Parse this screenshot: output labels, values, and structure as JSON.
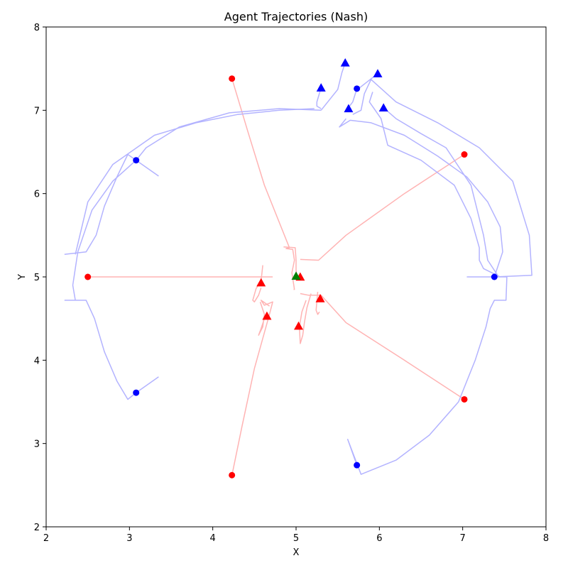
{
  "chart_data": {
    "type": "scatter",
    "title": "Agent Trajectories (Nash)",
    "xlabel": "X",
    "ylabel": "Y",
    "xlim": [
      2,
      8
    ],
    "ylim": [
      2,
      8
    ],
    "xticks": [
      2,
      3,
      4,
      5,
      6,
      7,
      8
    ],
    "yticks": [
      2,
      3,
      4,
      5,
      6,
      7,
      8
    ],
    "grid": false,
    "colors": {
      "red_trajectory": "#ffb3b3",
      "blue_trajectory": "#b3b3ff",
      "red_marker": "#ff0000",
      "blue_marker": "#0000ff",
      "target_marker": "#008000"
    },
    "red_trajectories": [
      [
        [
          4.23,
          7.38
        ],
        [
          4.42,
          6.75
        ],
        [
          4.62,
          6.1
        ],
        [
          4.82,
          5.6
        ],
        [
          4.92,
          5.35
        ],
        [
          4.88,
          5.34
        ],
        [
          4.96,
          5.33
        ],
        [
          4.98,
          5.2
        ],
        [
          4.95,
          5.05
        ],
        [
          4.98,
          4.85
        ],
        [
          4.97,
          4.85
        ]
      ],
      [
        [
          4.85,
          5.36
        ],
        [
          4.99,
          5.35
        ],
        [
          5.0,
          5.2
        ],
        [
          5.0,
          5.08
        ],
        [
          5.01,
          5.0
        ]
      ],
      [
        [
          2.5,
          5.0
        ],
        [
          3.5,
          5.0
        ],
        [
          4.3,
          5.0
        ],
        [
          4.72,
          5.0
        ]
      ],
      [
        [
          4.6,
          5.14
        ],
        [
          4.58,
          4.95
        ],
        [
          4.52,
          4.86
        ],
        [
          4.48,
          4.72
        ],
        [
          4.5,
          4.7
        ],
        [
          4.55,
          4.78
        ],
        [
          4.58,
          4.87
        ]
      ],
      [
        [
          7.02,
          6.47
        ],
        [
          6.3,
          6.0
        ],
        [
          5.6,
          5.5
        ],
        [
          5.27,
          5.2
        ],
        [
          5.05,
          5.21
        ]
      ],
      [
        [
          7.02,
          3.53
        ],
        [
          6.3,
          4.0
        ],
        [
          5.6,
          4.45
        ],
        [
          5.3,
          4.78
        ],
        [
          5.15,
          4.78
        ],
        [
          5.05,
          4.8
        ]
      ],
      [
        [
          5.18,
          4.8
        ],
        [
          5.13,
          4.63
        ],
        [
          5.1,
          4.45
        ],
        [
          5.08,
          4.3
        ],
        [
          5.05,
          4.2
        ],
        [
          5.04,
          4.4
        ],
        [
          5.07,
          4.58
        ],
        [
          5.12,
          4.72
        ]
      ],
      [
        [
          5.26,
          4.82
        ],
        [
          5.24,
          4.6
        ],
        [
          5.26,
          4.55
        ],
        [
          5.28,
          4.58
        ]
      ],
      [
        [
          4.23,
          2.62
        ],
        [
          4.35,
          3.2
        ],
        [
          4.5,
          3.9
        ],
        [
          4.68,
          4.55
        ],
        [
          4.72,
          4.7
        ],
        [
          4.62,
          4.66
        ],
        [
          4.58,
          4.72
        ],
        [
          4.68,
          4.65
        ]
      ],
      [
        [
          4.57,
          4.7
        ],
        [
          4.62,
          4.55
        ],
        [
          4.6,
          4.4
        ],
        [
          4.55,
          4.3
        ],
        [
          4.58,
          4.38
        ],
        [
          4.62,
          4.5
        ]
      ]
    ],
    "blue_trajectories": [
      [
        [
          3.35,
          6.21
        ],
        [
          3.08,
          6.4
        ],
        [
          2.98,
          6.47
        ],
        [
          2.85,
          6.2
        ],
        [
          2.7,
          5.85
        ],
        [
          2.6,
          5.5
        ],
        [
          2.48,
          5.3
        ],
        [
          2.22,
          5.27
        ]
      ],
      [
        [
          3.35,
          3.8
        ],
        [
          3.08,
          3.61
        ],
        [
          2.98,
          3.53
        ],
        [
          2.85,
          3.75
        ],
        [
          2.7,
          4.1
        ],
        [
          2.58,
          4.5
        ],
        [
          2.48,
          4.72
        ],
        [
          2.22,
          4.72
        ]
      ],
      [
        [
          5.73,
          2.74
        ],
        [
          5.62,
          3.05
        ],
        [
          5.78,
          2.63
        ],
        [
          6.2,
          2.8
        ],
        [
          6.6,
          3.1
        ],
        [
          6.95,
          3.5
        ],
        [
          7.15,
          4.0
        ],
        [
          7.28,
          4.4
        ],
        [
          7.33,
          4.62
        ],
        [
          7.38,
          4.72
        ],
        [
          7.52,
          4.72
        ],
        [
          7.53,
          5.0
        ],
        [
          7.05,
          5.0
        ]
      ],
      [
        [
          7.38,
          5.0
        ],
        [
          7.83,
          5.02
        ],
        [
          7.8,
          5.5
        ],
        [
          7.6,
          6.15
        ],
        [
          7.2,
          6.55
        ],
        [
          6.7,
          6.85
        ],
        [
          6.2,
          7.1
        ],
        [
          5.9,
          7.37
        ],
        [
          5.82,
          7.2
        ],
        [
          5.78,
          7.0
        ],
        [
          5.68,
          6.95
        ]
      ],
      [
        [
          7.38,
          5.0
        ],
        [
          7.48,
          5.3
        ],
        [
          7.45,
          5.6
        ],
        [
          7.3,
          5.9
        ],
        [
          7.05,
          6.2
        ],
        [
          6.7,
          6.45
        ],
        [
          6.3,
          6.7
        ],
        [
          5.9,
          6.85
        ],
        [
          5.65,
          6.88
        ],
        [
          5.52,
          6.8
        ],
        [
          5.6,
          6.9
        ]
      ],
      [
        [
          7.45,
          5.0
        ],
        [
          7.25,
          5.1
        ],
        [
          7.2,
          5.2
        ],
        [
          7.2,
          5.35
        ],
        [
          7.1,
          5.7
        ],
        [
          6.9,
          6.1
        ],
        [
          6.5,
          6.4
        ],
        [
          6.1,
          6.58
        ],
        [
          6.02,
          6.9
        ],
        [
          5.88,
          7.1
        ],
        [
          5.92,
          7.22
        ]
      ],
      [
        [
          5.73,
          7.26
        ],
        [
          5.68,
          7.1
        ],
        [
          5.62,
          7.02
        ]
      ],
      [
        [
          6.05,
          7.03
        ],
        [
          6.2,
          6.9
        ],
        [
          6.5,
          6.72
        ],
        [
          6.8,
          6.55
        ],
        [
          7.1,
          6.1
        ],
        [
          7.25,
          5.5
        ],
        [
          7.3,
          5.2
        ],
        [
          7.42,
          5.02
        ]
      ],
      [
        [
          3.08,
          6.4
        ],
        [
          2.8,
          6.15
        ],
        [
          2.55,
          5.8
        ],
        [
          2.38,
          5.3
        ],
        [
          2.32,
          4.9
        ],
        [
          2.35,
          4.72
        ]
      ],
      [
        [
          3.08,
          6.4
        ],
        [
          3.2,
          6.55
        ],
        [
          3.6,
          6.8
        ],
        [
          4.2,
          6.97
        ],
        [
          4.8,
          7.02
        ],
        [
          5.3,
          7.0
        ]
      ],
      [
        [
          2.35,
          5.27
        ],
        [
          2.5,
          5.9
        ],
        [
          2.8,
          6.35
        ],
        [
          3.3,
          6.7
        ],
        [
          3.8,
          6.85
        ],
        [
          4.3,
          6.95
        ],
        [
          4.8,
          7.0
        ],
        [
          5.22,
          7.02
        ]
      ],
      [
        [
          5.3,
          7.02
        ],
        [
          5.25,
          7.05
        ],
        [
          5.25,
          7.1
        ],
        [
          5.3,
          7.27
        ]
      ],
      [
        [
          5.3,
          7.0
        ],
        [
          5.5,
          7.25
        ],
        [
          5.55,
          7.45
        ],
        [
          5.59,
          7.57
        ]
      ],
      [
        [
          5.75,
          7.26
        ],
        [
          5.98,
          7.44
        ]
      ]
    ],
    "start_points_red": [
      [
        4.23,
        7.38
      ],
      [
        2.5,
        5.0
      ],
      [
        7.02,
        6.47
      ],
      [
        7.02,
        3.53
      ],
      [
        4.23,
        2.62
      ]
    ],
    "start_points_blue": [
      [
        3.08,
        6.4
      ],
      [
        3.08,
        3.61
      ],
      [
        5.73,
        7.26
      ],
      [
        7.38,
        5.0
      ],
      [
        5.73,
        2.74
      ]
    ],
    "end_points_red": [
      [
        4.58,
        4.93
      ],
      [
        5.05,
        5.0
      ],
      [
        4.65,
        4.53
      ],
      [
        5.03,
        4.41
      ],
      [
        5.29,
        4.74
      ]
    ],
    "end_points_blue": [
      [
        5.3,
        7.27
      ],
      [
        5.59,
        7.57
      ],
      [
        5.98,
        7.44
      ],
      [
        5.63,
        7.02
      ],
      [
        6.05,
        7.03
      ]
    ],
    "target_points": [
      [
        5.0,
        5.01
      ]
    ]
  }
}
